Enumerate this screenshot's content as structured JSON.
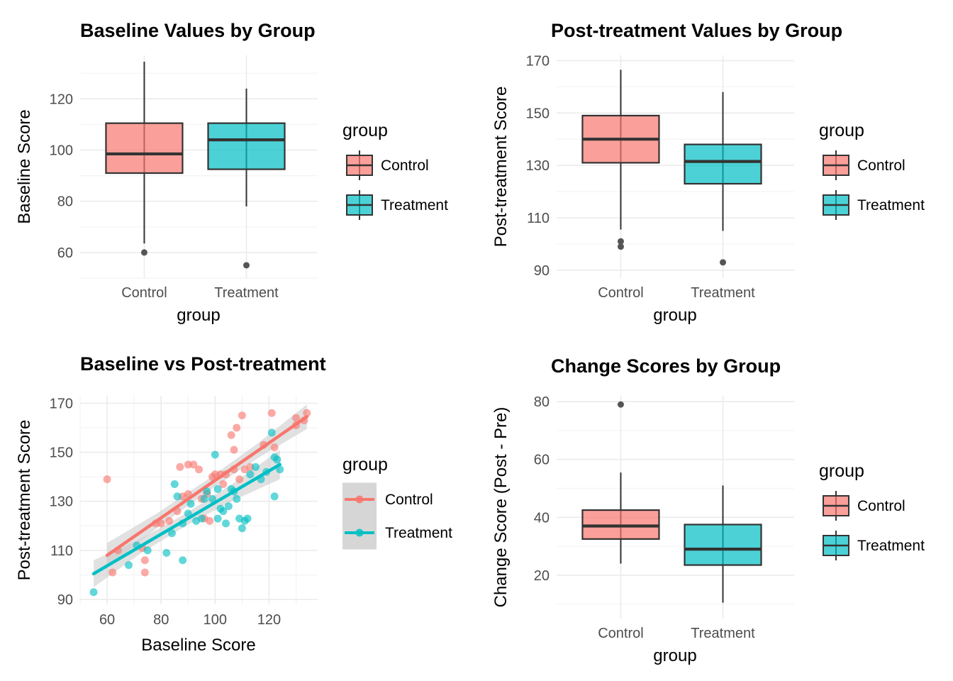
{
  "palette": {
    "control": "#F8766D",
    "treatment": "#00BFC4",
    "box_fill_opacity": 0.7,
    "box_border": "#333333",
    "outlier_dot": "#555555",
    "grid_major": "#EBEBEB",
    "grid_minor": "#F5F5F5",
    "tick_label_color": "#4D4D4D",
    "ci_band": "#C8C8C8",
    "legend_key_bg": "#D6D6D6",
    "background": "#FFFFFF"
  },
  "chart_data": [
    {
      "type": "boxplot",
      "title": "Baseline Values by Group",
      "xlabel": "group",
      "ylabel": "Baseline Score",
      "ylim": [
        50,
        137
      ],
      "yticks": [
        60,
        80,
        100,
        120
      ],
      "categories": [
        "Control",
        "Treatment"
      ],
      "legend": {
        "title": "group",
        "entries": [
          "Control",
          "Treatment"
        ]
      },
      "series": [
        {
          "name": "Control",
          "whisker_low": 63.5,
          "q1": 91,
          "median": 98.5,
          "q3": 110.5,
          "whisker_high": 134.5,
          "outliers": [
            60
          ]
        },
        {
          "name": "Treatment",
          "whisker_low": 78,
          "q1": 92.5,
          "median": 104,
          "q3": 110.5,
          "whisker_high": 124,
          "outliers": [
            55
          ]
        }
      ]
    },
    {
      "type": "boxplot",
      "title": "Post-treatment Values by Group",
      "xlabel": "group",
      "ylabel": "Post-treatment Score",
      "ylim": [
        87,
        172
      ],
      "yticks": [
        90,
        110,
        130,
        150,
        170
      ],
      "categories": [
        "Control",
        "Treatment"
      ],
      "legend": {
        "title": "group",
        "entries": [
          "Control",
          "Treatment"
        ]
      },
      "series": [
        {
          "name": "Control",
          "whisker_low": 105.5,
          "q1": 131,
          "median": 140,
          "q3": 149,
          "whisker_high": 166.5,
          "outliers": [
            99,
            101
          ]
        },
        {
          "name": "Treatment",
          "whisker_low": 105,
          "q1": 123,
          "median": 131.5,
          "q3": 138,
          "whisker_high": 158,
          "outliers": [
            93
          ]
        }
      ]
    },
    {
      "type": "scatter",
      "title": "Baseline vs Post-treatment",
      "xlabel": "Baseline Score",
      "ylabel": "Post-treatment Score",
      "xlim": [
        50,
        138
      ],
      "xticks": [
        60,
        80,
        100,
        120
      ],
      "ylim": [
        88,
        173
      ],
      "yticks": [
        90,
        110,
        130,
        150,
        170
      ],
      "legend": {
        "title": "group",
        "entries": [
          "Control",
          "Treatment"
        ]
      },
      "series": [
        {
          "name": "Control",
          "trend": {
            "x1": 60,
            "y1": 108,
            "x2": 134,
            "y2": 164.5
          },
          "ci_halfwidth": [
            5,
            3,
            2.5,
            3,
            5
          ],
          "points": [
            [
              60,
              139
            ],
            [
              62,
              101
            ],
            [
              64,
              110
            ],
            [
              73,
              111
            ],
            [
              74,
              106
            ],
            [
              74,
              101
            ],
            [
              78,
              121
            ],
            [
              80,
              121
            ],
            [
              83,
              122
            ],
            [
              86,
              126
            ],
            [
              87,
              144
            ],
            [
              90,
              145
            ],
            [
              92,
              145
            ],
            [
              94,
              143
            ],
            [
              88,
              132
            ],
            [
              90,
              133
            ],
            [
              95,
              131
            ],
            [
              96,
              123
            ],
            [
              98,
              122
            ],
            [
              97,
              133
            ],
            [
              99,
              140
            ],
            [
              100,
              141
            ],
            [
              102,
              141
            ],
            [
              103,
              137
            ],
            [
              104,
              141
            ],
            [
              106,
              157
            ],
            [
              107,
              151
            ],
            [
              108,
              160
            ],
            [
              110,
              165
            ],
            [
              107,
              143
            ],
            [
              109,
              139
            ],
            [
              111,
              143
            ],
            [
              113,
              144
            ],
            [
              118,
              153
            ],
            [
              121,
              166
            ],
            [
              122,
              152
            ],
            [
              130,
              161
            ],
            [
              130,
              164
            ],
            [
              133,
              163
            ],
            [
              134,
              166
            ]
          ]
        },
        {
          "name": "Treatment",
          "trend": {
            "x1": 55,
            "y1": 100.5,
            "x2": 124,
            "y2": 145
          },
          "ci_halfwidth": [
            5.5,
            3,
            2.5,
            3.5,
            6
          ],
          "points": [
            [
              55,
              93
            ],
            [
              68,
              104
            ],
            [
              71,
              112
            ],
            [
              75,
              110
            ],
            [
              82,
              109
            ],
            [
              84,
              117
            ],
            [
              88,
              106
            ],
            [
              85,
              137
            ],
            [
              86,
              132
            ],
            [
              88,
              121
            ],
            [
              90,
              125
            ],
            [
              91,
              129
            ],
            [
              93,
              122
            ],
            [
              95,
              123
            ],
            [
              96,
              131
            ],
            [
              97,
              134
            ],
            [
              99,
              131
            ],
            [
              100,
              149
            ],
            [
              101,
              135
            ],
            [
              101,
              123
            ],
            [
              102,
              127
            ],
            [
              103,
              126
            ],
            [
              104,
              121
            ],
            [
              105,
              128
            ],
            [
              106,
              135
            ],
            [
              107,
              134
            ],
            [
              108,
              131
            ],
            [
              109,
              123
            ],
            [
              110,
              119
            ],
            [
              111,
              122
            ],
            [
              112,
              123
            ],
            [
              113,
              141
            ],
            [
              115,
              144
            ],
            [
              117,
              139
            ],
            [
              119,
              142
            ],
            [
              121,
              158
            ],
            [
              122,
              148
            ],
            [
              123,
              147
            ],
            [
              122,
              132
            ],
            [
              124,
              143
            ]
          ]
        }
      ]
    },
    {
      "type": "boxplot",
      "title": "Change Scores by Group",
      "xlabel": "group",
      "ylabel": "Change Score (Post - Pre)",
      "ylim": [
        5,
        82
      ],
      "yticks": [
        20,
        40,
        60,
        80
      ],
      "categories": [
        "Control",
        "Treatment"
      ],
      "legend": {
        "title": "group",
        "entries": [
          "Control",
          "Treatment"
        ]
      },
      "series": [
        {
          "name": "Control",
          "whisker_low": 24,
          "q1": 32.5,
          "median": 37,
          "q3": 42.5,
          "whisker_high": 55.5,
          "outliers": [
            79
          ]
        },
        {
          "name": "Treatment",
          "whisker_low": 10.5,
          "q1": 23.5,
          "median": 29,
          "q3": 37.5,
          "whisker_high": 51,
          "outliers": []
        }
      ]
    }
  ]
}
